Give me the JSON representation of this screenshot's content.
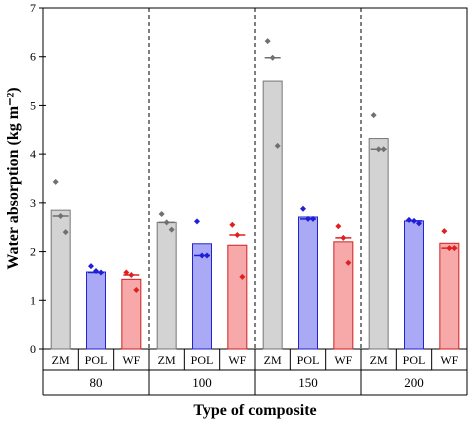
{
  "chart_data": {
    "type": "bar",
    "ylabel": "Water absorption (kg m⁻²)",
    "xlabel": "Type of composite",
    "ylim": [
      0,
      7
    ],
    "yticks": [
      "0",
      "1",
      "2",
      "3",
      "4",
      "5",
      "6",
      "7"
    ],
    "groups": [
      "80",
      "100",
      "150",
      "200"
    ],
    "categories": [
      "ZM",
      "POL",
      "WF"
    ],
    "colors": {
      "ZM": {
        "fill": "#d3d3d3",
        "stroke": "#777777",
        "point": "#707070"
      },
      "POL": {
        "fill": "#a9a9f5",
        "stroke": "#2323d0",
        "point": "#1f1fd8"
      },
      "WF": {
        "fill": "#f7a8a8",
        "stroke": "#d22020",
        "point": "#e02020"
      }
    },
    "series": [
      {
        "group": "80",
        "category": "ZM",
        "value": 2.85,
        "median": 2.73,
        "points": [
          3.43,
          2.73,
          2.4
        ]
      },
      {
        "group": "80",
        "category": "POL",
        "value": 1.58,
        "median": 1.57,
        "points": [
          1.7,
          1.6,
          1.57
        ]
      },
      {
        "group": "80",
        "category": "WF",
        "value": 1.43,
        "median": 1.52,
        "points": [
          1.57,
          1.52,
          1.21
        ]
      },
      {
        "group": "100",
        "category": "ZM",
        "value": 2.6,
        "median": 2.6,
        "points": [
          2.77,
          2.6,
          2.45
        ]
      },
      {
        "group": "100",
        "category": "POL",
        "value": 2.16,
        "median": 1.92,
        "points": [
          2.62,
          1.92,
          1.92
        ]
      },
      {
        "group": "100",
        "category": "WF",
        "value": 2.13,
        "median": 2.34,
        "points": [
          2.55,
          2.34,
          1.48
        ]
      },
      {
        "group": "150",
        "category": "ZM",
        "value": 5.5,
        "median": 5.98,
        "points": [
          6.32,
          5.98,
          4.17
        ]
      },
      {
        "group": "150",
        "category": "POL",
        "value": 2.71,
        "median": 2.67,
        "points": [
          2.88,
          2.67,
          2.67
        ]
      },
      {
        "group": "150",
        "category": "WF",
        "value": 2.2,
        "median": 2.28,
        "points": [
          2.52,
          2.28,
          1.77
        ]
      },
      {
        "group": "200",
        "category": "ZM",
        "value": 4.32,
        "median": 4.1,
        "points": [
          4.8,
          4.1,
          4.1
        ]
      },
      {
        "group": "200",
        "category": "POL",
        "value": 2.63,
        "median": 2.63,
        "points": [
          2.65,
          2.63,
          2.58
        ]
      },
      {
        "group": "200",
        "category": "WF",
        "value": 2.17,
        "median": 2.07,
        "points": [
          2.42,
          2.07,
          2.07
        ]
      }
    ]
  }
}
